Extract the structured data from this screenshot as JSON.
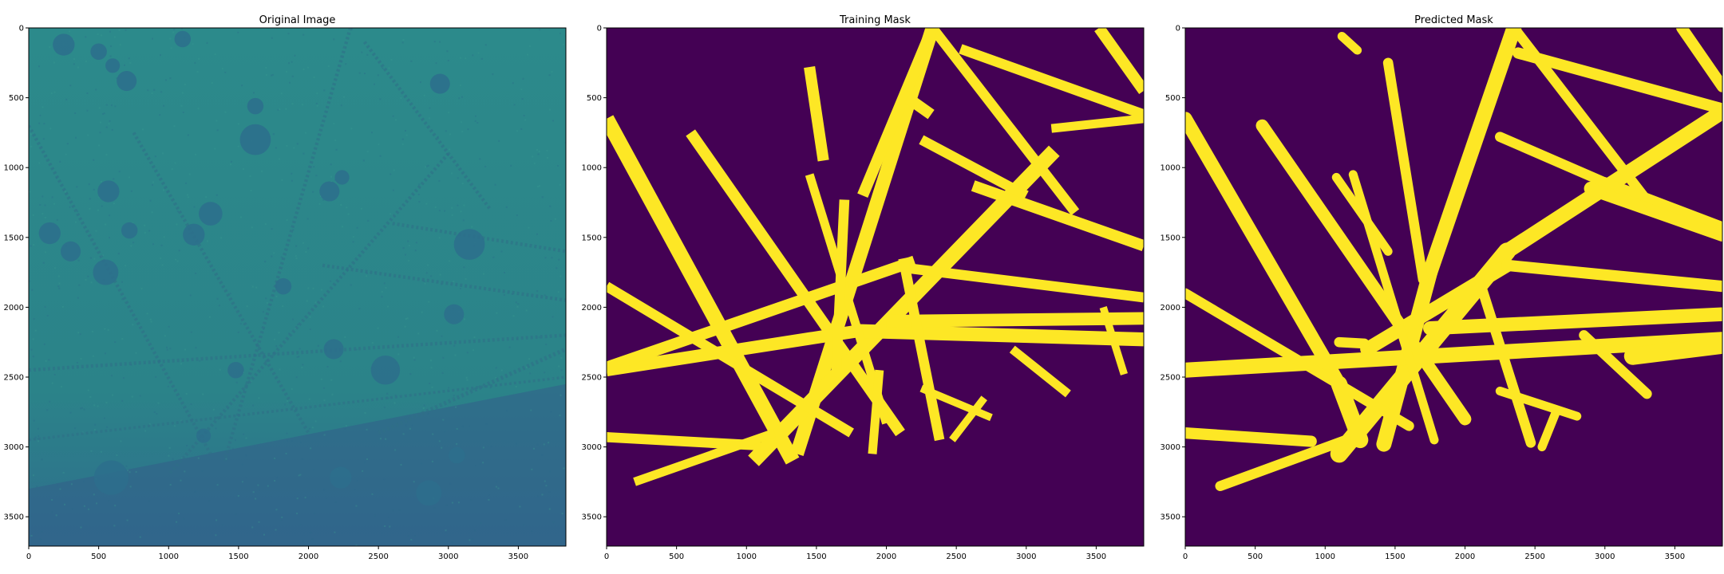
{
  "colors": {
    "background_purple": "#440154",
    "mask_yellow": "#fde725",
    "micrograph_teal": "#2c8a8b",
    "micrograph_dark": "#2d6f8c",
    "axis": "#000000"
  },
  "chart_data": [
    {
      "type": "image",
      "title": "Original Image",
      "xlabel": "",
      "ylabel": "",
      "xlim": [
        0,
        3840
      ],
      "ylim": [
        3710,
        0
      ],
      "x_ticks": [
        0,
        500,
        1000,
        1500,
        2000,
        2500,
        3000,
        3500
      ],
      "y_ticks": [
        0,
        500,
        1000,
        1500,
        2000,
        2500,
        3000,
        3500
      ],
      "x_tick_labels": [
        "0",
        "500",
        "1000",
        "1500",
        "2000",
        "2500",
        "3000",
        "3500"
      ],
      "y_tick_labels": [
        "0",
        "500",
        "1000",
        "1500",
        "2000",
        "2500",
        "3000",
        "3500"
      ],
      "colormap": "viridis",
      "blobs": [
        {
          "x": 250,
          "y": 120,
          "r": 60
        },
        {
          "x": 500,
          "y": 170,
          "r": 45
        },
        {
          "x": 700,
          "y": 380,
          "r": 55
        },
        {
          "x": 600,
          "y": 270,
          "r": 40
        },
        {
          "x": 1100,
          "y": 80,
          "r": 45
        },
        {
          "x": 1620,
          "y": 800,
          "r": 85
        },
        {
          "x": 1620,
          "y": 560,
          "r": 45
        },
        {
          "x": 570,
          "y": 1170,
          "r": 60
        },
        {
          "x": 1300,
          "y": 1330,
          "r": 65
        },
        {
          "x": 1180,
          "y": 1480,
          "r": 60
        },
        {
          "x": 720,
          "y": 1450,
          "r": 45
        },
        {
          "x": 550,
          "y": 1750,
          "r": 70
        },
        {
          "x": 300,
          "y": 1600,
          "r": 55
        },
        {
          "x": 1820,
          "y": 1850,
          "r": 45
        },
        {
          "x": 2240,
          "y": 1070,
          "r": 40
        },
        {
          "x": 2150,
          "y": 1170,
          "r": 55
        },
        {
          "x": 2940,
          "y": 400,
          "r": 55
        },
        {
          "x": 3150,
          "y": 1550,
          "r": 85
        },
        {
          "x": 2180,
          "y": 2300,
          "r": 55
        },
        {
          "x": 2550,
          "y": 2450,
          "r": 80
        },
        {
          "x": 3040,
          "y": 2050,
          "r": 55
        },
        {
          "x": 1480,
          "y": 2450,
          "r": 45
        },
        {
          "x": 590,
          "y": 3220,
          "r": 95
        },
        {
          "x": 2230,
          "y": 3220,
          "r": 60
        },
        {
          "x": 2860,
          "y": 3330,
          "r": 70
        },
        {
          "x": 3060,
          "y": 3060,
          "r": 45
        },
        {
          "x": 150,
          "y": 1470,
          "r": 60
        },
        {
          "x": 1250,
          "y": 2920,
          "r": 40
        }
      ],
      "filaments": [
        {
          "x1": 0,
          "y1": 700,
          "x2": 1300,
          "y2": 3050,
          "w": 25
        },
        {
          "x1": 750,
          "y1": 750,
          "x2": 2000,
          "y2": 2900,
          "w": 25
        },
        {
          "x1": 2300,
          "y1": 0,
          "x2": 1400,
          "y2": 3100,
          "w": 25
        },
        {
          "x1": 3000,
          "y1": 900,
          "x2": 1000,
          "y2": 3200,
          "w": 25
        },
        {
          "x1": 0,
          "y1": 2450,
          "x2": 3840,
          "y2": 2200,
          "w": 25
        },
        {
          "x1": 2100,
          "y1": 1700,
          "x2": 3840,
          "y2": 1950,
          "w": 25
        },
        {
          "x1": 2600,
          "y1": 1400,
          "x2": 3840,
          "y2": 1600,
          "w": 25
        },
        {
          "x1": 2400,
          "y1": 100,
          "x2": 3300,
          "y2": 1300,
          "w": 25
        },
        {
          "x1": 2500,
          "y1": 2900,
          "x2": 3840,
          "y2": 2300,
          "w": 30
        },
        {
          "x1": 0,
          "y1": 2950,
          "x2": 3840,
          "y2": 2500,
          "w": 20
        }
      ],
      "rough_region": {
        "y_start": 2550,
        "boundary_left_y": 3300,
        "boundary_right_y": 2550
      }
    },
    {
      "type": "image",
      "title": "Training Mask",
      "xlabel": "",
      "ylabel": "",
      "xlim": [
        0,
        3840
      ],
      "ylim": [
        3710,
        0
      ],
      "x_ticks": [
        0,
        500,
        1000,
        1500,
        2000,
        2500,
        3000,
        3500
      ],
      "y_ticks": [
        0,
        500,
        1000,
        1500,
        2000,
        2500,
        3000,
        3500
      ],
      "x_tick_labels": [
        "0",
        "500",
        "1000",
        "1500",
        "2000",
        "2500",
        "3000",
        "3500"
      ],
      "y_tick_labels": [
        "0",
        "500",
        "1000",
        "1500",
        "2000",
        "2500",
        "3000",
        "3500"
      ],
      "colormap": "viridis",
      "segments": [
        {
          "x1": 0,
          "y1": 650,
          "x2": 1330,
          "y2": 3100,
          "w": 60
        },
        {
          "x1": 600,
          "y1": 750,
          "x2": 2100,
          "y2": 2900,
          "w": 45
        },
        {
          "x1": 2330,
          "y1": 0,
          "x2": 1360,
          "y2": 3050,
          "w": 55
        },
        {
          "x1": 3200,
          "y1": 880,
          "x2": 1050,
          "y2": 3100,
          "w": 60
        },
        {
          "x1": 0,
          "y1": 2450,
          "x2": 1800,
          "y2": 2170,
          "w": 50
        },
        {
          "x1": 1800,
          "y1": 2170,
          "x2": 3840,
          "y2": 2230,
          "w": 55
        },
        {
          "x1": 0,
          "y1": 2930,
          "x2": 1100,
          "y2": 2990,
          "w": 40
        },
        {
          "x1": 0,
          "y1": 2430,
          "x2": 2200,
          "y2": 1670,
          "w": 45
        },
        {
          "x1": 2150,
          "y1": 1720,
          "x2": 3840,
          "y2": 1930,
          "w": 40
        },
        {
          "x1": 2000,
          "y1": 2100,
          "x2": 3840,
          "y2": 2080,
          "w": 50
        },
        {
          "x1": 2620,
          "y1": 1130,
          "x2": 3840,
          "y2": 1560,
          "w": 45
        },
        {
          "x1": 2250,
          "y1": 800,
          "x2": 3000,
          "y2": 1200,
          "w": 40
        },
        {
          "x1": 2530,
          "y1": 150,
          "x2": 3840,
          "y2": 620,
          "w": 40
        },
        {
          "x1": 2330,
          "y1": 0,
          "x2": 3350,
          "y2": 1320,
          "w": 40
        },
        {
          "x1": 1830,
          "y1": 1200,
          "x2": 2330,
          "y2": 0,
          "w": 45
        },
        {
          "x1": 1450,
          "y1": 1050,
          "x2": 2000,
          "y2": 2830,
          "w": 35
        },
        {
          "x1": 1700,
          "y1": 1230,
          "x2": 1640,
          "y2": 2500,
          "w": 40
        },
        {
          "x1": 1450,
          "y1": 280,
          "x2": 1550,
          "y2": 950,
          "w": 45
        },
        {
          "x1": 2120,
          "y1": 1650,
          "x2": 2380,
          "y2": 2950,
          "w": 40
        },
        {
          "x1": 0,
          "y1": 1850,
          "x2": 1750,
          "y2": 2900,
          "w": 40
        },
        {
          "x1": 2250,
          "y1": 2580,
          "x2": 2750,
          "y2": 2790,
          "w": 30
        },
        {
          "x1": 2470,
          "y1": 2950,
          "x2": 2700,
          "y2": 2650,
          "w": 30
        },
        {
          "x1": 2900,
          "y1": 2300,
          "x2": 3300,
          "y2": 2620,
          "w": 35
        },
        {
          "x1": 3180,
          "y1": 720,
          "x2": 3840,
          "y2": 650,
          "w": 35
        },
        {
          "x1": 3520,
          "y1": 0,
          "x2": 3840,
          "y2": 450,
          "w": 45
        },
        {
          "x1": 2150,
          "y1": 500,
          "x2": 2320,
          "y2": 620,
          "w": 45
        },
        {
          "x1": 3550,
          "y1": 2000,
          "x2": 3700,
          "y2": 2480,
          "w": 30
        },
        {
          "x1": 1950,
          "y1": 2450,
          "x2": 1900,
          "y2": 3050,
          "w": 35
        },
        {
          "x1": 200,
          "y1": 3250,
          "x2": 1200,
          "y2": 2900,
          "w": 35
        }
      ]
    },
    {
      "type": "image",
      "title": "Predicted Mask",
      "xlabel": "",
      "ylabel": "",
      "xlim": [
        0,
        3840
      ],
      "ylim": [
        3710,
        0
      ],
      "x_ticks": [
        0,
        500,
        1000,
        1500,
        2000,
        2500,
        3000,
        3500
      ],
      "y_ticks": [
        0,
        500,
        1000,
        1500,
        2000,
        2500,
        3000,
        3500
      ],
      "x_tick_labels": [
        "0",
        "500",
        "1000",
        "1500",
        "2000",
        "2500",
        "3000",
        "3500"
      ],
      "y_tick_labels": [
        "0",
        "500",
        "1000",
        "1500",
        "2000",
        "2500",
        "3000",
        "3500"
      ],
      "colormap": "viridis",
      "segments": [
        {
          "x1": 0,
          "y1": 650,
          "x2": 1100,
          "y2": 2550,
          "w": 55
        },
        {
          "x1": 1100,
          "y1": 2550,
          "x2": 1250,
          "y2": 2950,
          "w": 65
        },
        {
          "x1": 550,
          "y1": 700,
          "x2": 2000,
          "y2": 2800,
          "w": 50
        },
        {
          "x1": 2350,
          "y1": 0,
          "x2": 1750,
          "y2": 1750,
          "w": 60
        },
        {
          "x1": 1750,
          "y1": 1750,
          "x2": 1420,
          "y2": 2980,
          "w": 60
        },
        {
          "x1": 3840,
          "y1": 600,
          "x2": 2300,
          "y2": 1600,
          "w": 60
        },
        {
          "x1": 2300,
          "y1": 1600,
          "x2": 1100,
          "y2": 3050,
          "w": 70
        },
        {
          "x1": 0,
          "y1": 2450,
          "x2": 3840,
          "y2": 2230,
          "w": 60
        },
        {
          "x1": 0,
          "y1": 2900,
          "x2": 900,
          "y2": 2960,
          "w": 45
        },
        {
          "x1": 1300,
          "y1": 2300,
          "x2": 2300,
          "y2": 1700,
          "w": 55
        },
        {
          "x1": 2300,
          "y1": 1700,
          "x2": 3840,
          "y2": 1850,
          "w": 45
        },
        {
          "x1": 1750,
          "y1": 2150,
          "x2": 3840,
          "y2": 2050,
          "w": 55
        },
        {
          "x1": 2900,
          "y1": 1150,
          "x2": 3840,
          "y2": 1480,
          "w": 55
        },
        {
          "x1": 2250,
          "y1": 780,
          "x2": 3100,
          "y2": 1150,
          "w": 40
        },
        {
          "x1": 2350,
          "y1": 0,
          "x2": 3350,
          "y2": 1300,
          "w": 40
        },
        {
          "x1": 2380,
          "y1": 180,
          "x2": 3840,
          "y2": 580,
          "w": 45
        },
        {
          "x1": 1450,
          "y1": 250,
          "x2": 1700,
          "y2": 1800,
          "w": 40
        },
        {
          "x1": 1200,
          "y1": 1050,
          "x2": 1780,
          "y2": 2950,
          "w": 35
        },
        {
          "x1": 2100,
          "y1": 1800,
          "x2": 2470,
          "y2": 2970,
          "w": 40
        },
        {
          "x1": 0,
          "y1": 1900,
          "x2": 1600,
          "y2": 2850,
          "w": 40
        },
        {
          "x1": 2250,
          "y1": 2600,
          "x2": 2800,
          "y2": 2780,
          "w": 35
        },
        {
          "x1": 2850,
          "y1": 2200,
          "x2": 3300,
          "y2": 2620,
          "w": 40
        },
        {
          "x1": 3200,
          "y1": 2350,
          "x2": 3840,
          "y2": 2270,
          "w": 70
        },
        {
          "x1": 3550,
          "y1": 0,
          "x2": 3840,
          "y2": 420,
          "w": 45
        },
        {
          "x1": 1100,
          "y1": 2250,
          "x2": 1280,
          "y2": 2260,
          "w": 40
        },
        {
          "x1": 1080,
          "y1": 1070,
          "x2": 1450,
          "y2": 1600,
          "w": 35
        },
        {
          "x1": 250,
          "y1": 3280,
          "x2": 1150,
          "y2": 2950,
          "w": 40
        },
        {
          "x1": 1120,
          "y1": 60,
          "x2": 1230,
          "y2": 160,
          "w": 35
        },
        {
          "x1": 2650,
          "y1": 2750,
          "x2": 2550,
          "y2": 3000,
          "w": 35
        },
        {
          "x1": 3000,
          "y1": 1100,
          "x2": 3840,
          "y2": 1420,
          "w": 35
        }
      ]
    }
  ]
}
